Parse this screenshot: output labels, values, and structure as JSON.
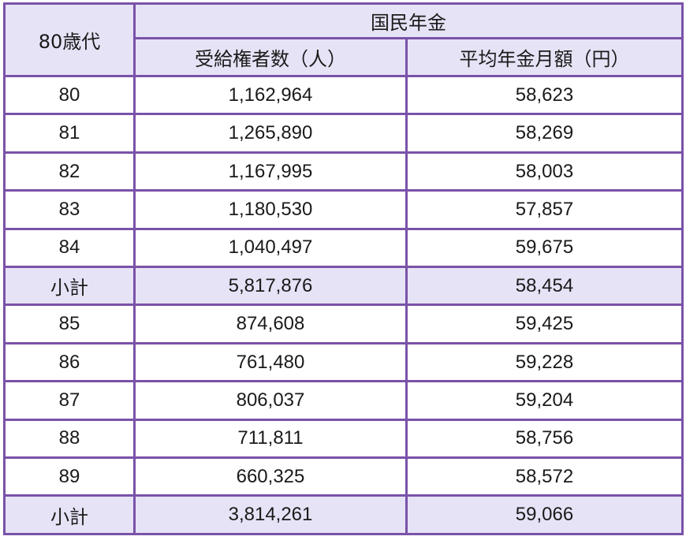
{
  "table": {
    "corner_label": "80歳代",
    "group_header": "国民年金",
    "columns": [
      "受給権者数（人）",
      "平均年金月額（円）"
    ],
    "rows": [
      {
        "age": "80",
        "recipients": "1,162,964",
        "avg_monthly": "58,623",
        "subtotal": false
      },
      {
        "age": "81",
        "recipients": "1,265,890",
        "avg_monthly": "58,269",
        "subtotal": false
      },
      {
        "age": "82",
        "recipients": "1,167,995",
        "avg_monthly": "58,003",
        "subtotal": false
      },
      {
        "age": "83",
        "recipients": "1,180,530",
        "avg_monthly": "57,857",
        "subtotal": false
      },
      {
        "age": "84",
        "recipients": "1,040,497",
        "avg_monthly": "59,675",
        "subtotal": false
      },
      {
        "age": "小計",
        "recipients": "5,817,876",
        "avg_monthly": "58,454",
        "subtotal": true
      },
      {
        "age": "85",
        "recipients": "874,608",
        "avg_monthly": "59,425",
        "subtotal": false
      },
      {
        "age": "86",
        "recipients": "761,480",
        "avg_monthly": "59,228",
        "subtotal": false
      },
      {
        "age": "87",
        "recipients": "806,037",
        "avg_monthly": "59,204",
        "subtotal": false
      },
      {
        "age": "88",
        "recipients": "711,811",
        "avg_monthly": "58,756",
        "subtotal": false
      },
      {
        "age": "89",
        "recipients": "660,325",
        "avg_monthly": "58,572",
        "subtotal": false
      },
      {
        "age": "小計",
        "recipients": "3,814,261",
        "avg_monthly": "59,066",
        "subtotal": true
      }
    ]
  },
  "colors": {
    "border": "#7a52a8",
    "header_bg": "#e6e3f6",
    "row_bg": "#ffffff"
  },
  "chart_data": {
    "type": "table",
    "title": "国民年金",
    "row_header": "80歳代",
    "columns": [
      "受給権者数（人）",
      "平均年金月額（円）"
    ],
    "categories": [
      "80",
      "81",
      "82",
      "83",
      "84",
      "小計(80-84)",
      "85",
      "86",
      "87",
      "88",
      "89",
      "小計(85-89)"
    ],
    "series": [
      {
        "name": "受給権者数（人）",
        "values": [
          1162964,
          1265890,
          1167995,
          1180530,
          1040497,
          5817876,
          874608,
          761480,
          806037,
          711811,
          660325,
          3814261
        ]
      },
      {
        "name": "平均年金月額（円）",
        "values": [
          58623,
          58269,
          58003,
          57857,
          59675,
          58454,
          59425,
          59228,
          59204,
          58756,
          58572,
          59066
        ]
      }
    ]
  }
}
